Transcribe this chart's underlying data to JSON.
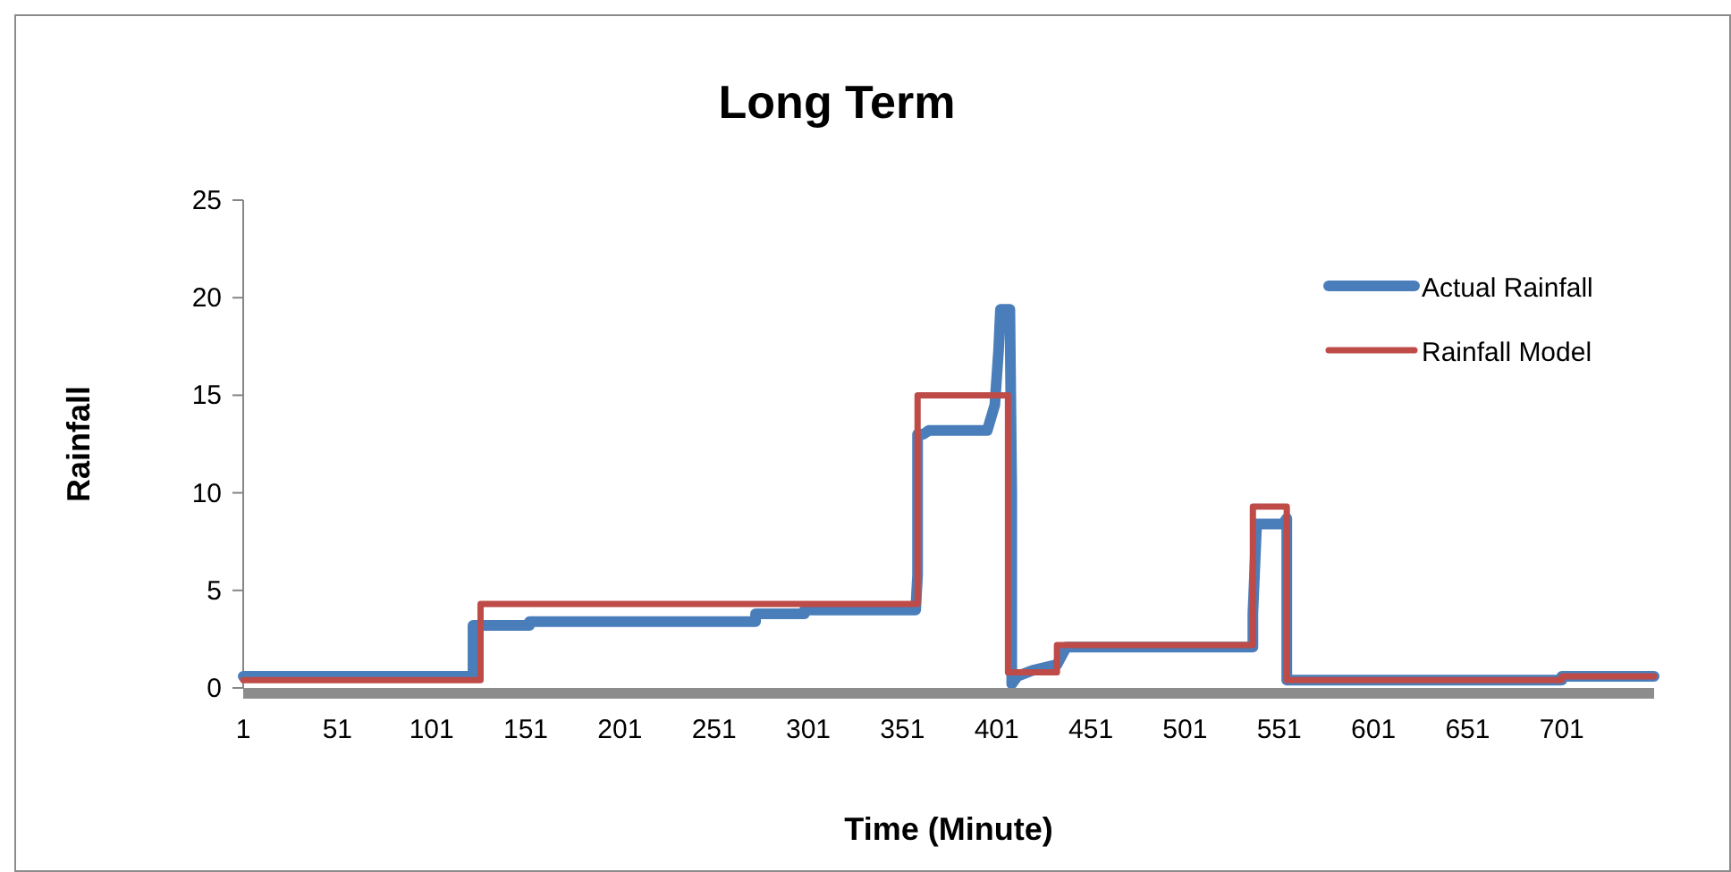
{
  "chart_data": {
    "type": "line",
    "title": "Long Term",
    "xlabel": "Time (Minute)",
    "ylabel": "Rainfall",
    "xlim": [
      1,
      750
    ],
    "xticks": [
      1,
      51,
      101,
      151,
      201,
      251,
      301,
      351,
      401,
      451,
      501,
      551,
      601,
      651,
      701
    ],
    "ylim": [
      0,
      25
    ],
    "yticks": [
      0,
      5,
      10,
      15,
      20,
      25
    ],
    "grid": false,
    "legend": "top right",
    "marker": "none",
    "series": [
      {
        "name": "Actual Rainfall",
        "color": "#4a7ebb",
        "x": [
          1,
          123,
          123,
          153,
          153,
          273,
          273,
          299,
          299,
          358,
          359,
          359,
          362,
          365,
          396,
          400,
          402,
          403,
          408,
          409,
          409,
          412,
          420,
          433,
          438,
          537,
          537,
          539,
          553,
          555,
          555,
          701,
          701,
          750
        ],
        "values": [
          0.6,
          0.6,
          3.2,
          3.2,
          3.4,
          3.4,
          3.8,
          3.8,
          4.0,
          4.0,
          5.8,
          13.0,
          13.0,
          13.2,
          13.2,
          14.5,
          17.3,
          19.4,
          19.4,
          10,
          0.2,
          0.6,
          0.9,
          1.2,
          2.1,
          2.1,
          3.8,
          8.4,
          8.4,
          8.7,
          0.4,
          0.4,
          0.6,
          0.6
        ]
      },
      {
        "name": "Rainfall Model",
        "color": "#be4b48",
        "x": [
          1,
          127,
          127,
          359,
          359,
          407,
          407,
          433,
          433,
          537,
          537,
          555,
          555,
          701,
          701,
          750
        ],
        "values": [
          0.4,
          0.4,
          4.3,
          4.3,
          15,
          15,
          0.8,
          0.8,
          2.2,
          2.2,
          9.3,
          9.3,
          0.4,
          0.4,
          0.6,
          0.6
        ]
      }
    ]
  }
}
